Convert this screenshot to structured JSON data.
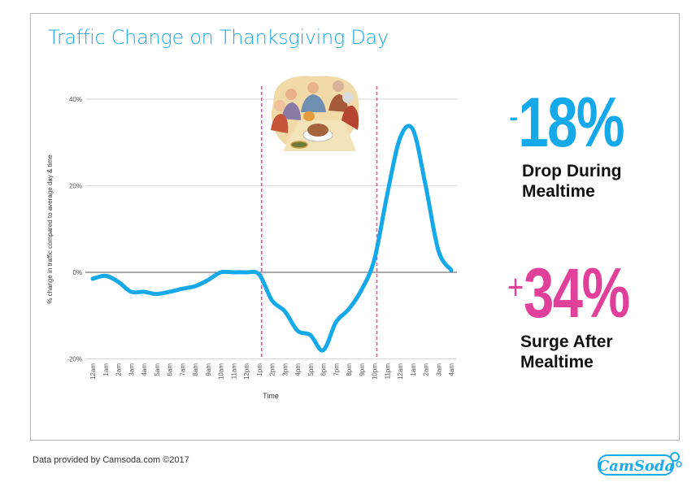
{
  "title": "Traffic Change on Thanksgiving Day",
  "stats": [
    {
      "sign": "-",
      "value": "18%",
      "caption_line1": "Drop During",
      "caption_line2": "Mealtime",
      "color": "#16a9ea"
    },
    {
      "sign": "+",
      "value": "34%",
      "caption_line1": "Surge After",
      "caption_line2": "Mealtime",
      "color": "#e03f9a"
    }
  ],
  "footer": "Data provided by Camsoda.com ©2017",
  "logo": {
    "text": "CamSoda",
    "color": "#1aa9ea"
  },
  "illustration": "thanksgiving-dinner-illustration",
  "chart_data": {
    "type": "line",
    "title": "Traffic Change on Thanksgiving Day",
    "xlabel": "Time",
    "ylabel": "% change in traffic compared to average day & time",
    "ylim": [
      -20,
      40
    ],
    "yticks": [
      40,
      20,
      0,
      -20
    ],
    "ytick_labels": [
      "40%",
      "20%",
      "0%",
      "-20%"
    ],
    "grid": true,
    "categories": [
      "12am",
      "1am",
      "2am",
      "3am",
      "4am",
      "5am",
      "6am",
      "7am",
      "8am",
      "9am",
      "10am",
      "11am",
      "12pm",
      "1pm",
      "2pm",
      "3pm",
      "4pm",
      "5pm",
      "6pm",
      "7pm",
      "8pm",
      "9pm",
      "10pm",
      "11pm",
      "12am",
      "1am",
      "2am",
      "3am",
      "4am"
    ],
    "series": [
      {
        "name": "Traffic change",
        "color": "#16a9ea",
        "values": [
          -1.5,
          -0.8,
          -2.2,
          -4.5,
          -4.5,
          -5,
          -4.5,
          -3.8,
          -3.2,
          -1.8,
          0,
          0,
          0,
          -0.5,
          -6.5,
          -9,
          -13.5,
          -14.5,
          -18,
          -11.5,
          -8.5,
          -4,
          3,
          18,
          31,
          33,
          20,
          5,
          0.5
        ]
      }
    ],
    "annotations": [
      {
        "type": "vertical-line",
        "at": "1pm",
        "color": "#ea4fa6",
        "style": "dashed"
      },
      {
        "type": "vertical-line",
        "at": "10pm",
        "color": "#ea4fa6",
        "style": "dashed"
      }
    ]
  }
}
